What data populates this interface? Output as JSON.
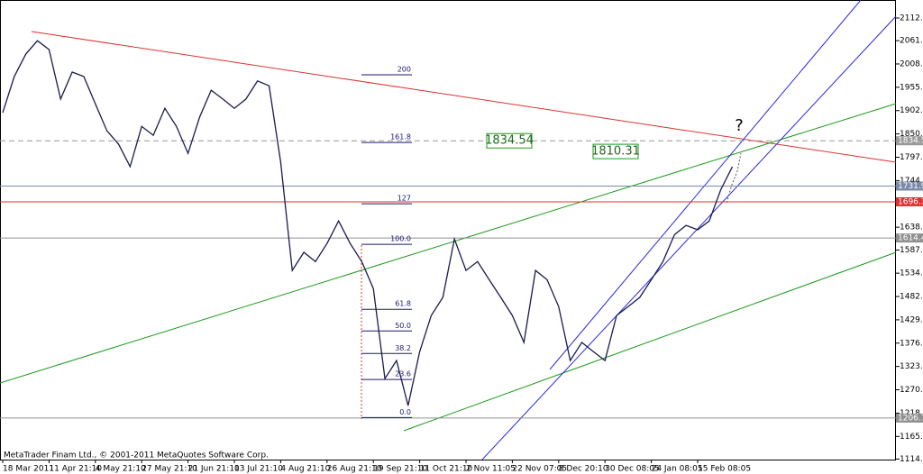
{
  "chart_data": {
    "type": "line",
    "categories": [
      "18 Mar 2011",
      null,
      null,
      null,
      "11 Apr 21:10",
      null,
      null,
      null,
      "4 May 21:10",
      null,
      null,
      null,
      "27 May 21:10",
      null,
      null,
      null,
      "21 Jun 21:10",
      null,
      null,
      null,
      "13 Jul 21:10",
      null,
      null,
      null,
      "4 Aug 21:10",
      null,
      null,
      null,
      "26 Aug 21:10",
      null,
      null,
      null,
      "19 Sep 21:10",
      null,
      null,
      null,
      "11 Oct 21:10",
      null,
      null,
      null,
      "2 Nov 11:05",
      null,
      null,
      null,
      "22 Nov 07:05",
      null,
      null,
      null,
      "8 Dec 20:10",
      null,
      null,
      null,
      "30 Dec 08:05",
      null,
      null,
      null,
      "24 Jan 08:05",
      null,
      null,
      null,
      "15 Feb 08:05",
      null,
      null,
      null
    ],
    "series": [
      {
        "color": "#1a1a4e",
        "values": [
          1898,
          1980,
          2031,
          2061,
          2041,
          1929,
          1990,
          1980,
          1918,
          1857,
          1827,
          1776,
          1867,
          1847,
          1908,
          1867,
          1806,
          1888,
          1949,
          1929,
          1908,
          1929,
          1970,
          1959,
          1786,
          1541,
          1582,
          1561,
          1602,
          1653,
          1602,
          1561,
          1500,
          1296,
          1337,
          1235,
          1357,
          1439,
          1480,
          1612,
          1541,
          1561,
          1520,
          1480,
          1439,
          1378,
          1541,
          1520,
          1459,
          1337,
          1378,
          1357,
          1337,
          1439,
          1459,
          1480,
          1520,
          1561,
          1622,
          1643,
          1633,
          1653,
          1724,
          1776
        ]
      }
    ],
    "ylim": [
      1112.8,
      2153.2
    ],
    "yticks": [
      {
        "value": 2112.4,
        "label": "2112.40"
      },
      {
        "value": 2061.2,
        "label": "2061.20"
      },
      {
        "value": 2008.4,
        "label": "2008.40"
      },
      {
        "value": 1955.6,
        "label": "1955.60"
      },
      {
        "value": 1902.8,
        "label": "1902.80"
      },
      {
        "value": 1850,
        "label": "1850.00"
      },
      {
        "value": 1797.2,
        "label": "1797.20"
      },
      {
        "value": 1744.4,
        "label": "1744.40"
      },
      {
        "value": 1638.8,
        "label": "1638.80"
      },
      {
        "value": 1587.2,
        "label": "1587.20"
      },
      {
        "value": 1534.8,
        "label": "1534.80"
      },
      {
        "value": 1482,
        "label": "1482.00"
      },
      {
        "value": 1429.2,
        "label": "1429.20"
      },
      {
        "value": 1376.4,
        "label": "1376.40"
      },
      {
        "value": 1323.6,
        "label": "1323.60"
      },
      {
        "value": 1270.8,
        "label": "1270.80"
      },
      {
        "value": 1218,
        "label": "1218.00"
      },
      {
        "value": 1165.2,
        "label": "1165.20"
      },
      {
        "value": 1114,
        "label": "1114.00"
      }
    ],
    "levels": [
      {
        "value": 1834.54,
        "color": "#999999"
      },
      {
        "value": 1731.97,
        "color": "#7a8aa8"
      },
      {
        "value": 1696.35,
        "color": "#e03030"
      },
      {
        "value": 1614.41,
        "color": "#909090"
      },
      {
        "value": 1206.78,
        "color": "#909090"
      }
    ],
    "fib": [
      {
        "label": "200",
        "value": 1983.8
      },
      {
        "label": "161.8",
        "value": 1830.7
      },
      {
        "label": "127",
        "value": 1691.9
      },
      {
        "label": "100.0",
        "value": 1600
      },
      {
        "label": "61.8",
        "value": 1453
      },
      {
        "label": "50.0",
        "value": 1404
      },
      {
        "label": "38.2",
        "value": 1353
      },
      {
        "label": "23.6",
        "value": 1294
      },
      {
        "label": "0.0",
        "value": 1208
      }
    ],
    "annotations": [
      {
        "text": "1834.54",
        "value": 1834.54
      },
      {
        "text": "1810.31",
        "value": 1810.31
      },
      {
        "text": "?"
      }
    ],
    "footer": "MetaTrader Finam Ltd., © 2001-2011 MetaQuotes Software Corp."
  }
}
